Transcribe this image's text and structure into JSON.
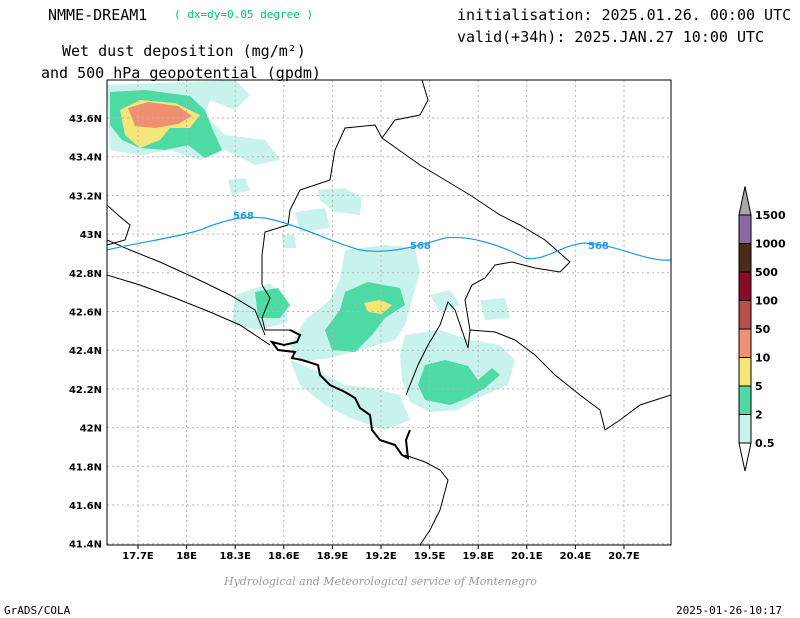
{
  "header": {
    "model": "NMME-DREAM1",
    "resolution": "( dx=dy=0.05 degree )",
    "initialisation": "initialisation: 2025.01.26. 00:00 UTC",
    "valid": "valid(+34h): 2025.JAN.27 10:00 UTC",
    "title_line1": "Wet dust deposition (mg/m²)",
    "title_line2": "and 500 hPa geopotential (gpdm)"
  },
  "map": {
    "lon_ticks": [
      "17.7E",
      "18E",
      "18.3E",
      "18.6E",
      "18.9E",
      "19.2E",
      "19.5E",
      "19.8E",
      "20.1E",
      "20.4E",
      "20.7E"
    ],
    "lat_ticks": [
      "43.6N",
      "43.4N",
      "43.2N",
      "43N",
      "42.8N",
      "42.6N",
      "42.4N",
      "42.2N",
      "42N",
      "41.8N",
      "41.6N",
      "41.4N"
    ],
    "geopotential_label": "568",
    "contour_color": "#1e9be6"
  },
  "colorbar": {
    "levels": [
      "0.5",
      "2",
      "5",
      "10",
      "50",
      "100",
      "500",
      "1000",
      "1500"
    ],
    "colors": [
      "#c8f3ec",
      "#4ddaa4",
      "#f5e67a",
      "#f09070",
      "#b85048",
      "#8a0a2a",
      "#4a2a18",
      "#8a6aa2",
      "#a8a8a8"
    ]
  },
  "footer": {
    "credit": "Hydrological and Meteorological service of Montenegro",
    "software": "GrADS/COLA",
    "timestamp": "2025-01-26-10:17"
  }
}
